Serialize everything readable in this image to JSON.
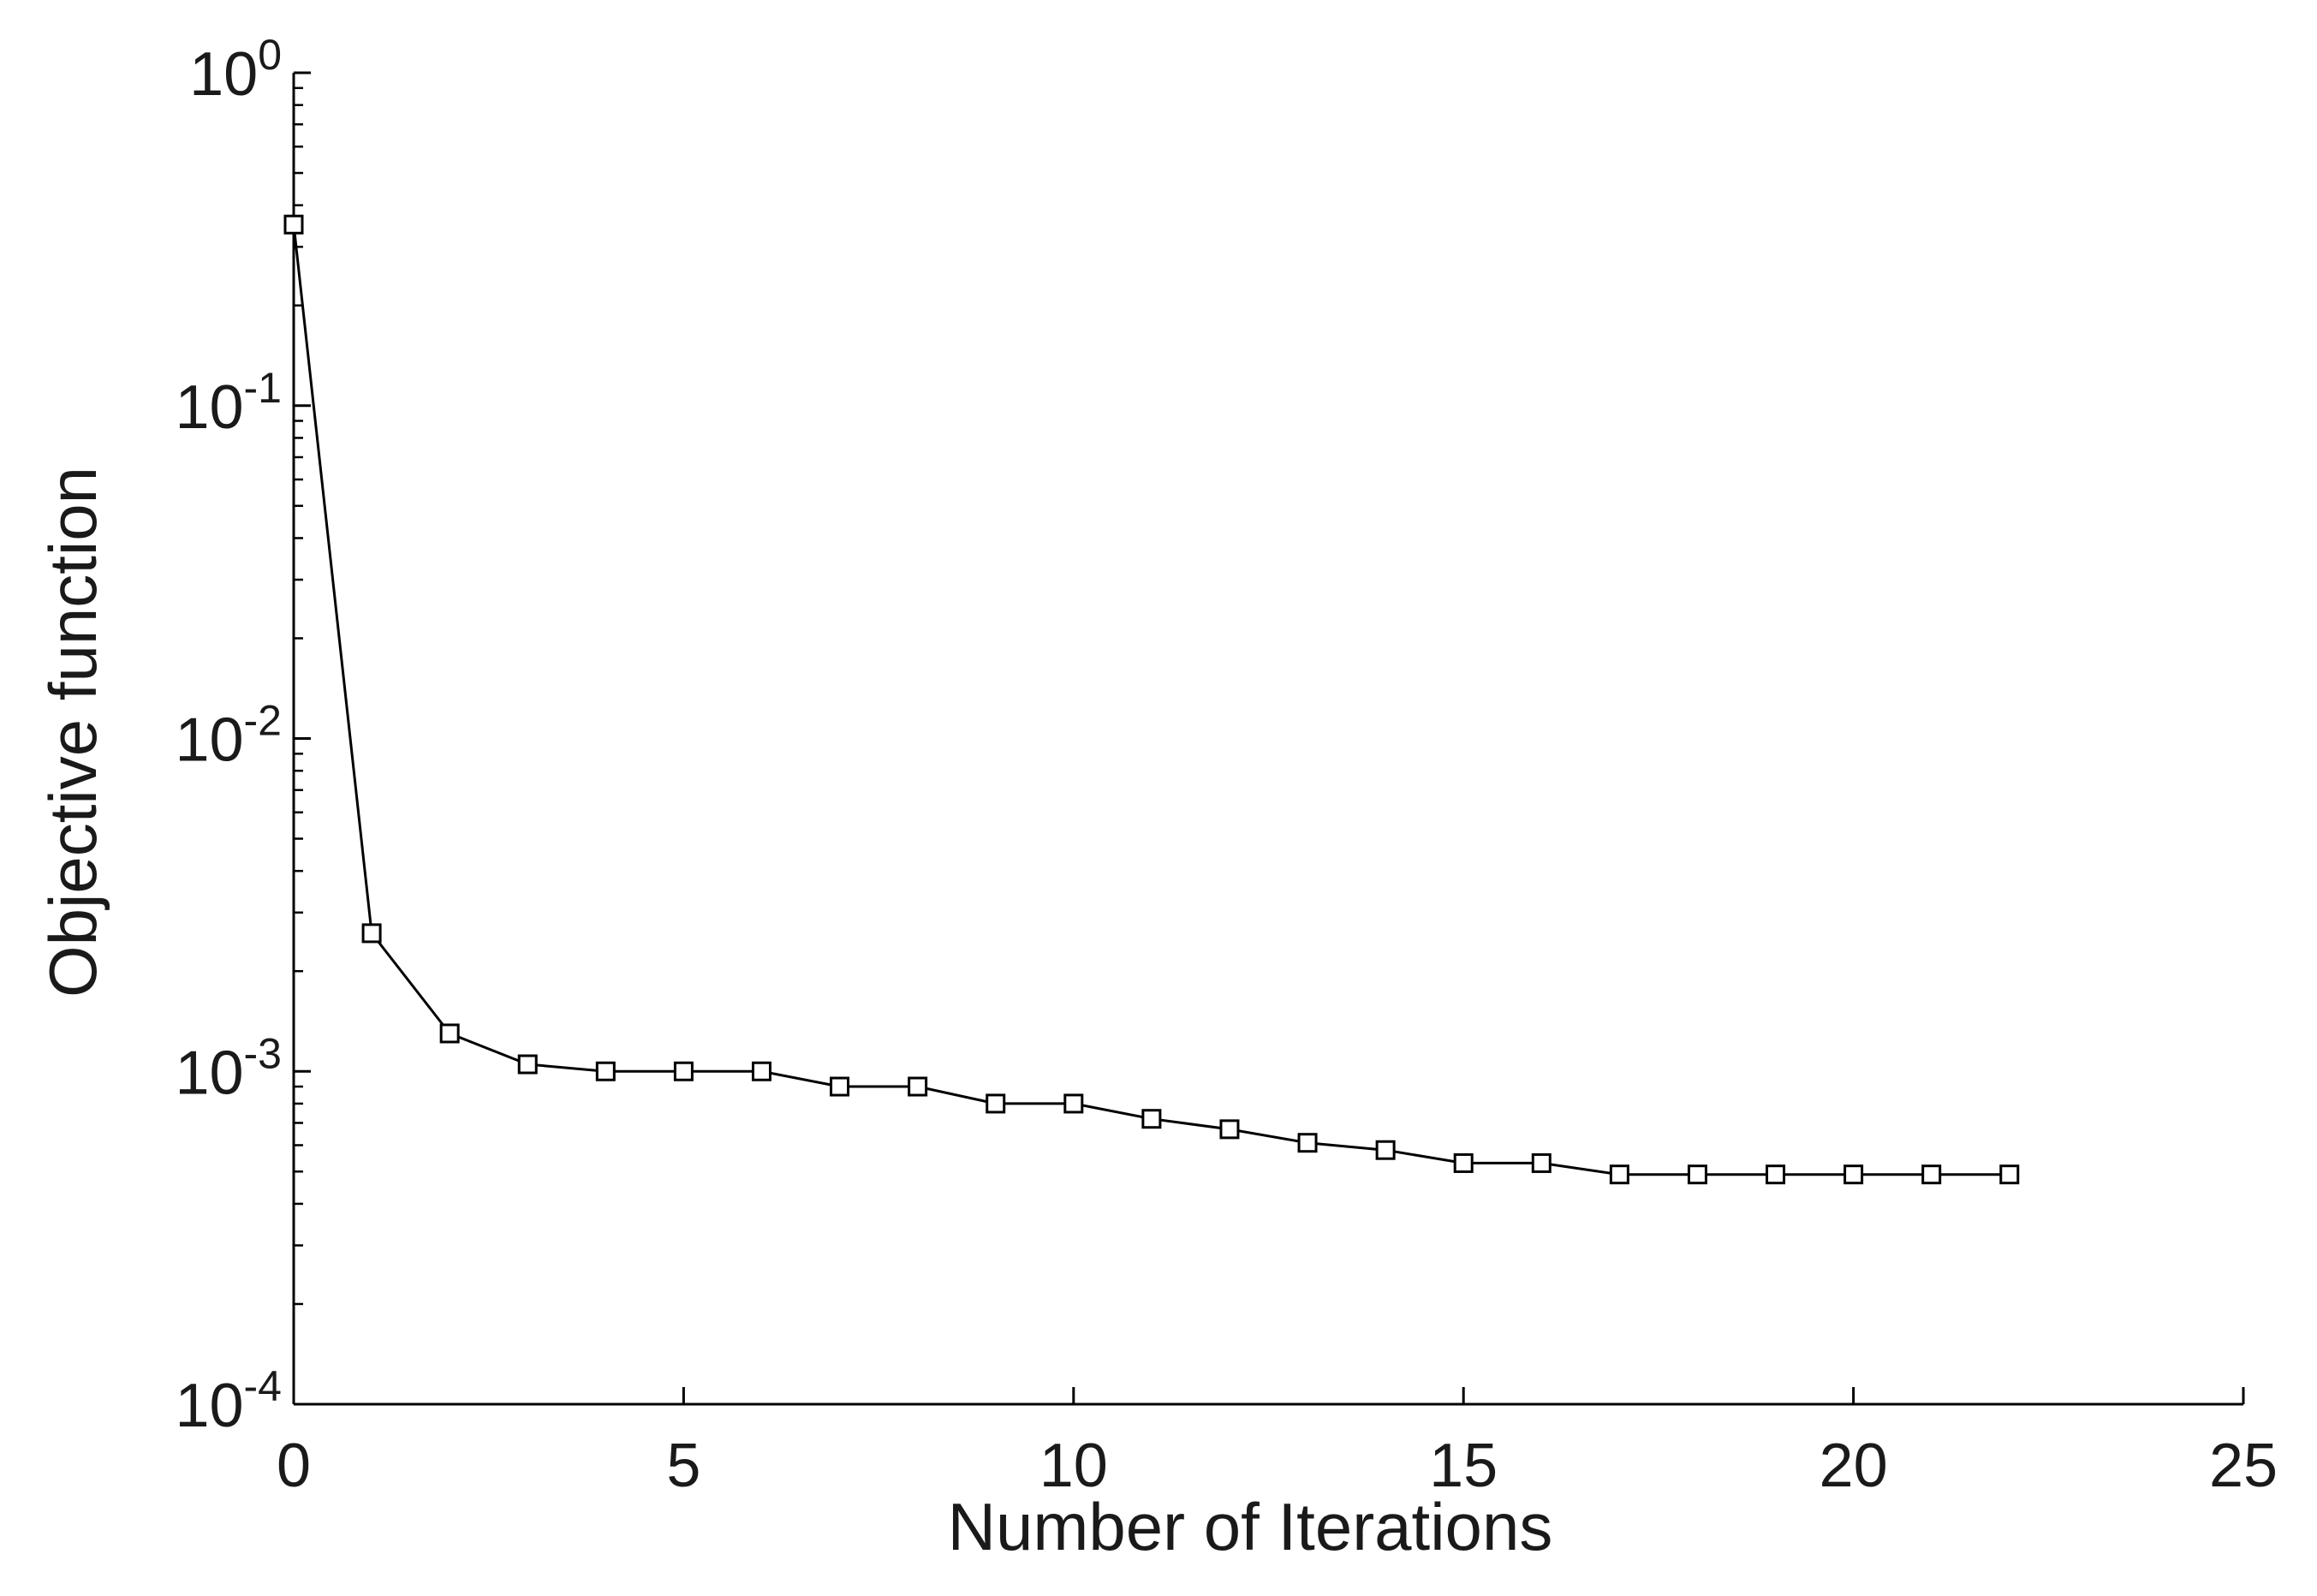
{
  "chart_data": {
    "type": "line",
    "title": "",
    "xlabel": "Number of Iterations",
    "ylabel": "Objective function",
    "xlim": [
      0,
      25
    ],
    "ylim": [
      0.0001,
      1
    ],
    "yscale": "log",
    "grid": false,
    "legend": "none",
    "x_ticks": [
      0,
      5,
      10,
      15,
      20,
      25
    ],
    "x_tick_labels": [
      "0",
      "5",
      "10",
      "15",
      "20",
      "25"
    ],
    "y_ticks": [
      0.0001,
      0.001,
      0.01,
      0.1,
      1
    ],
    "y_tick_labels": [
      {
        "base": "10",
        "exp": "-4"
      },
      {
        "base": "10",
        "exp": "-3"
      },
      {
        "base": "10",
        "exp": "-2"
      },
      {
        "base": "10",
        "exp": "-1"
      },
      {
        "base": "10",
        "exp": "0"
      }
    ],
    "series": [
      {
        "marker": "square",
        "color": "#000000",
        "x": [
          0,
          1,
          2,
          3,
          4,
          5,
          6,
          7,
          8,
          9,
          10,
          11,
          12,
          13,
          14,
          15,
          16,
          17,
          18,
          19,
          20,
          21,
          22
        ],
        "y": [
          0.35,
          0.0026,
          0.0013,
          0.00105,
          0.001,
          0.001,
          0.001,
          0.0009,
          0.0009,
          0.0008,
          0.0008,
          0.00072,
          0.00067,
          0.00061,
          0.00058,
          0.00053,
          0.00053,
          0.00049,
          0.00049,
          0.00049,
          0.00049,
          0.00049,
          0.00049
        ]
      }
    ]
  }
}
